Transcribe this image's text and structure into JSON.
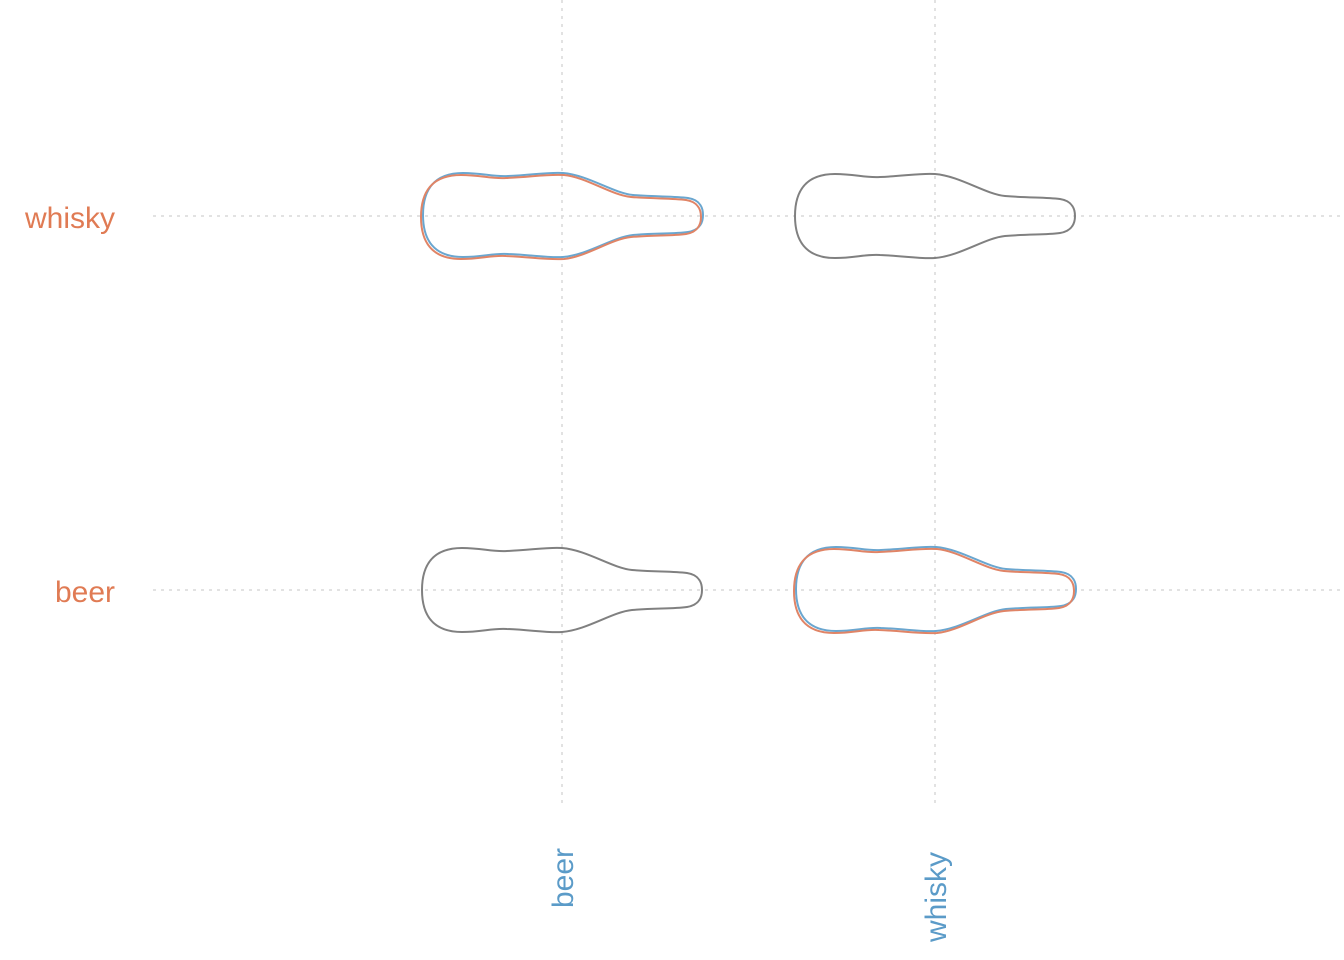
{
  "chart_data": {
    "type": "scatter",
    "title": "",
    "xlabel": "",
    "ylabel": "",
    "x_categories": [
      "beer",
      "whisky"
    ],
    "y_categories": [
      "beer",
      "whisky"
    ],
    "grid": true,
    "legend": "none",
    "colors": {
      "row_label": "#e07b54",
      "col_label": "#5b9bc8",
      "outline_neutral": "#808080",
      "outline_a": "#6aa6cf",
      "outline_b": "#e08466"
    },
    "cells": [
      {
        "x": "beer",
        "y": "whisky",
        "highlight": true
      },
      {
        "x": "whisky",
        "y": "whisky",
        "highlight": false
      },
      {
        "x": "beer",
        "y": "beer",
        "highlight": false
      },
      {
        "x": "whisky",
        "y": "beer",
        "highlight": true
      }
    ]
  }
}
